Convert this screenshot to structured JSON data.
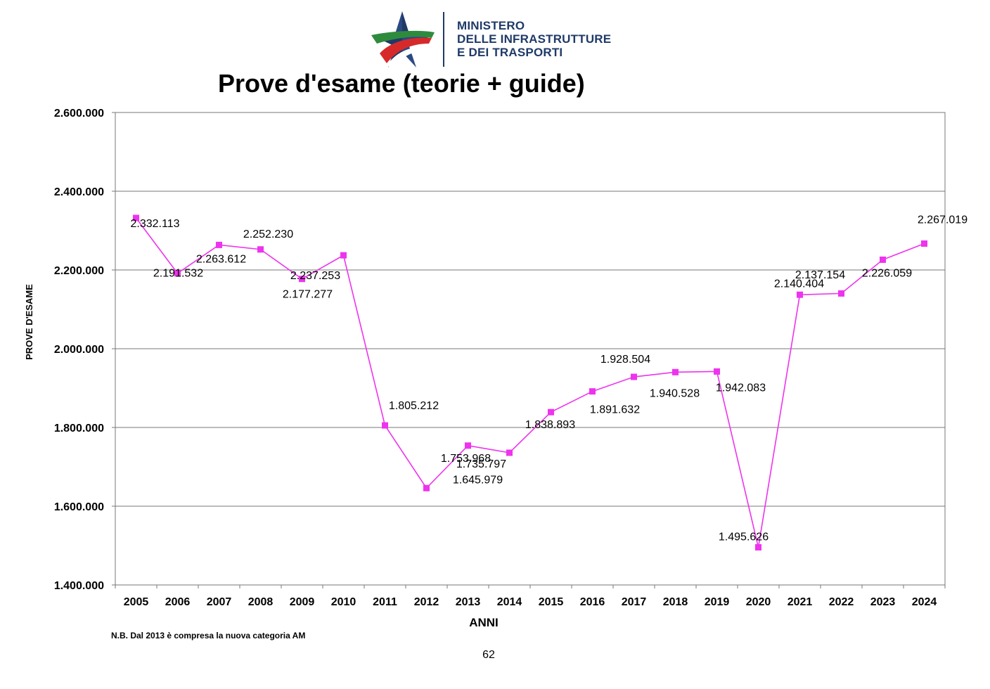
{
  "header": {
    "logo_lines": [
      "MINISTERO",
      "DELLE INFRASTRUTTURE",
      "E DEI TRASPORTI"
    ]
  },
  "colors": {
    "series": "#ee33ee",
    "grid": "#777777",
    "logo_blue": "#1f3a68",
    "logo_green": "#2e8b3d",
    "logo_red": "#d62a2a"
  },
  "chart_data": {
    "type": "line",
    "title": "Prove d'esame (teorie + guide)",
    "xlabel": "ANNI",
    "ylabel": "PROVE D'ESAME",
    "ylim": [
      1400000,
      2600000
    ],
    "yticks": [
      "1.400.000",
      "1.600.000",
      "1.800.000",
      "2.000.000",
      "2.200.000",
      "2.400.000",
      "2.600.000"
    ],
    "ytick_values": [
      1400000,
      1600000,
      1800000,
      2000000,
      2200000,
      2400000,
      2600000
    ],
    "grid": true,
    "categories": [
      "2005",
      "2006",
      "2007",
      "2008",
      "2009",
      "2010",
      "2011",
      "2012",
      "2013",
      "2014",
      "2015",
      "2016",
      "2017",
      "2018",
      "2019",
      "2020",
      "2021",
      "2022",
      "2023",
      "2024"
    ],
    "values": [
      2332113,
      2191532,
      2263612,
      2252230,
      2177277,
      2237253,
      1805212,
      1645979,
      1753968,
      1735797,
      1838893,
      1891632,
      1928504,
      1940528,
      1942083,
      1495626,
      2137154,
      2140404,
      2226059,
      2267019
    ],
    "data_labels": [
      "2.332.113",
      "2.191.532",
      "2.263.612",
      "2.252.230",
      "2.177.277",
      "2.237.253",
      "1.805.212",
      "1.645.979",
      "1.753.968",
      "1.735.797",
      "1.838.893",
      "1.891.632",
      "1.928.504",
      "1.940.528",
      "1.942.083",
      "1.495.626",
      "2.137.154",
      "2.140.404",
      "2.226.059",
      "2.267.019"
    ]
  },
  "footnote": "N.B. Dal 2013 è compresa la nuova categoria AM",
  "page_number": "62"
}
